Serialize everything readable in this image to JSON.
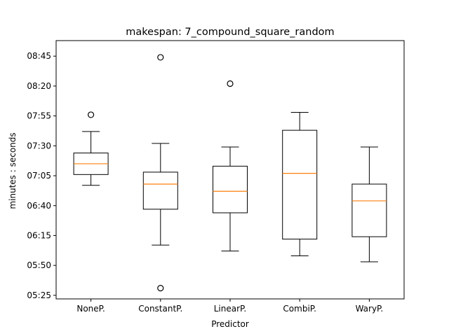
{
  "chart_data": {
    "type": "box",
    "title": "makespan: 7_compound_square_random",
    "xlabel": "Predictor",
    "ylabel": "minutes : seconds",
    "ylim": [
      322,
      538
    ],
    "y_ticks": [
      {
        "value": 325,
        "label": "05:25"
      },
      {
        "value": 350,
        "label": "05:50"
      },
      {
        "value": 375,
        "label": "06:15"
      },
      {
        "value": 400,
        "label": "06:40"
      },
      {
        "value": 425,
        "label": "07:05"
      },
      {
        "value": 450,
        "label": "07:30"
      },
      {
        "value": 475,
        "label": "07:55"
      },
      {
        "value": 500,
        "label": "08:20"
      },
      {
        "value": 525,
        "label": "08:45"
      }
    ],
    "categories": [
      "NoneP.",
      "ConstantP.",
      "LinearP.",
      "CombiP.",
      "WaryP."
    ],
    "boxes": [
      {
        "name": "NoneP.",
        "whisker_low": 417,
        "q1": 426,
        "median": 435,
        "q3": 444,
        "whisker_high": 462,
        "outliers": [
          476
        ]
      },
      {
        "name": "ConstantP.",
        "whisker_low": 367,
        "q1": 397,
        "median": 418,
        "q3": 428,
        "whisker_high": 452,
        "outliers": [
          331,
          524
        ]
      },
      {
        "name": "LinearP.",
        "whisker_low": 362,
        "q1": 394,
        "median": 412,
        "q3": 433,
        "whisker_high": 449,
        "outliers": [
          502
        ]
      },
      {
        "name": "CombiP.",
        "whisker_low": 358,
        "q1": 372,
        "median": 427,
        "q3": 463,
        "whisker_high": 478,
        "outliers": []
      },
      {
        "name": "WaryP.",
        "whisker_low": 353,
        "q1": 374,
        "median": 404,
        "q3": 418,
        "whisker_high": 449,
        "outliers": []
      }
    ],
    "colors": {
      "box": "#000000",
      "median": "#ff7f0e",
      "background": "#ffffff"
    },
    "grid": false,
    "legend": "none"
  }
}
